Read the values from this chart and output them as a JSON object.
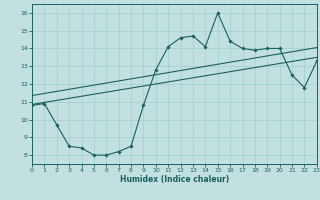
{
  "xlabel": "Humidex (Indice chaleur)",
  "xlim": [
    0,
    23
  ],
  "ylim": [
    7.5,
    16.5
  ],
  "xticks": [
    0,
    1,
    2,
    3,
    4,
    5,
    6,
    7,
    8,
    9,
    10,
    11,
    12,
    13,
    14,
    15,
    16,
    17,
    18,
    19,
    20,
    21,
    22,
    23
  ],
  "yticks": [
    8,
    9,
    10,
    11,
    12,
    13,
    14,
    15,
    16
  ],
  "bg_color": "#c2e0e0",
  "grid_color": "#9fcfcf",
  "line_color": "#1a6060",
  "curve_x": [
    0,
    1,
    2,
    3,
    4,
    5,
    6,
    7,
    8,
    9,
    10,
    11,
    12,
    13,
    14,
    15,
    16,
    17,
    18,
    19,
    20,
    21,
    22,
    23
  ],
  "curve_y": [
    10.8,
    10.9,
    9.7,
    8.5,
    8.4,
    8.0,
    8.0,
    8.2,
    8.5,
    10.8,
    12.8,
    14.1,
    14.6,
    14.7,
    14.1,
    16.0,
    14.4,
    14.0,
    13.9,
    14.0,
    14.0,
    12.5,
    11.8,
    13.3
  ],
  "line1_x": [
    0,
    23
  ],
  "line1_y": [
    10.85,
    13.5
  ],
  "line2_x": [
    0,
    23
  ],
  "line2_y": [
    11.35,
    14.05
  ]
}
